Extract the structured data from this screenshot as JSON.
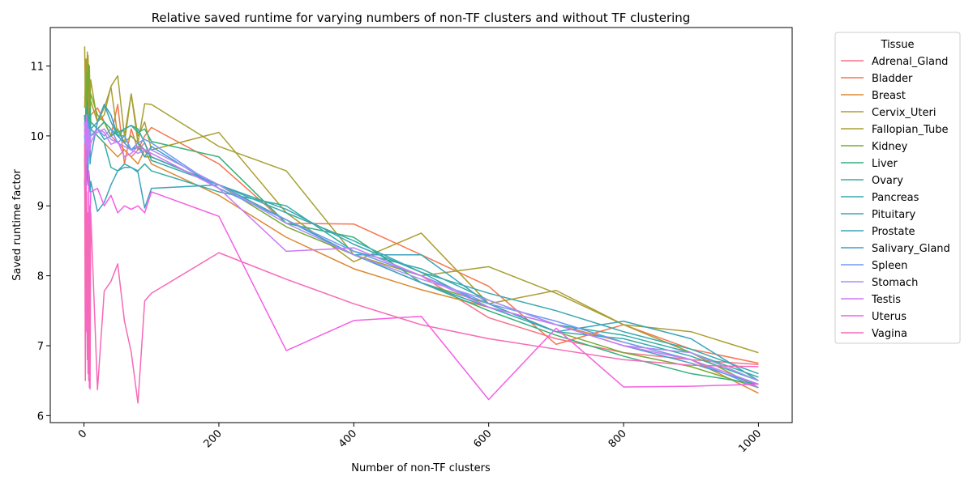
{
  "chart_data": {
    "type": "line",
    "title": "Relative saved runtime for varying numbers of non-TF clusters and without TF clustering",
    "xlabel": "Number of non-TF clusters",
    "ylabel": "Saved runtime factor",
    "xlim": [
      -50,
      1050
    ],
    "ylim": [
      5.9,
      11.55
    ],
    "x_ticks": [
      0,
      200,
      400,
      600,
      800,
      1000
    ],
    "y_ticks": [
      6,
      7,
      8,
      9,
      10,
      11
    ],
    "x_tick_rotation": 45,
    "grid": false,
    "legend": {
      "title": "Tissue",
      "placement": "outside-right-top"
    },
    "x": [
      1,
      2,
      3,
      4,
      5,
      6,
      7,
      8,
      9,
      10,
      20,
      30,
      40,
      50,
      60,
      70,
      80,
      90,
      100,
      200,
      300,
      400,
      500,
      600,
      700,
      800,
      900,
      1000
    ],
    "series": [
      {
        "name": "Adrenal_Gland",
        "color": "#f77189",
        "values": [
          10.2,
          9.9,
          10.3,
          10.0,
          9.8,
          10.1,
          9.9,
          10.0,
          9.7,
          10.2,
          10.1,
          10.2,
          10.0,
          9.9,
          9.8,
          9.7,
          9.8,
          9.9,
          9.7,
          9.3,
          8.8,
          8.3,
          8.0,
          7.4,
          7.1,
          6.9,
          6.8,
          6.73
        ]
      },
      {
        "name": "Bladder",
        "color": "#f7754f",
        "values": [
          10.3,
          10.0,
          10.4,
          10.1,
          9.9,
          10.5,
          10.2,
          10.4,
          10.1,
          10.3,
          10.4,
          10.2,
          10.0,
          10.45,
          9.6,
          10.1,
          9.8,
          10.0,
          10.12,
          9.6,
          8.75,
          8.74,
          8.3,
          7.85,
          7.02,
          7.3,
          6.95,
          6.75
        ]
      },
      {
        "name": "Breast",
        "color": "#dc8932",
        "values": [
          10.1,
          9.8,
          10.2,
          10.0,
          9.9,
          10.3,
          10.6,
          10.4,
          10.2,
          10.1,
          10.0,
          9.9,
          9.8,
          9.7,
          9.8,
          9.7,
          9.6,
          9.8,
          9.6,
          9.15,
          8.55,
          8.1,
          7.8,
          7.55,
          7.3,
          7.05,
          6.8,
          6.32
        ]
      },
      {
        "name": "Cervix_Uteri",
        "color": "#ae9d31",
        "values": [
          11.28,
          10.5,
          11.1,
          10.7,
          11.2,
          10.4,
          10.9,
          10.6,
          10.3,
          10.5,
          10.2,
          10.4,
          10.7,
          10.0,
          9.9,
          10.6,
          10.0,
          10.2,
          9.8,
          10.05,
          8.9,
          8.2,
          8.61,
          7.6,
          7.79,
          7.3,
          7.2,
          6.9
        ]
      },
      {
        "name": "Fallopian_Tube",
        "color": "#a6a032",
        "values": [
          10.4,
          10.8,
          11.0,
          10.6,
          10.9,
          11.15,
          10.7,
          11.0,
          10.5,
          10.8,
          10.2,
          10.3,
          10.71,
          10.86,
          10.0,
          10.6,
          9.9,
          10.46,
          10.45,
          9.85,
          9.5,
          8.3,
          8.0,
          8.13,
          7.75,
          7.3,
          6.9,
          6.4
        ]
      },
      {
        "name": "Kidney",
        "color": "#77ab31",
        "values": [
          10.3,
          10.1,
          10.5,
          10.9,
          10.2,
          10.8,
          11.02,
          10.7,
          10.4,
          10.6,
          10.3,
          10.2,
          10.0,
          10.1,
          9.9,
          10.0,
          9.9,
          9.7,
          9.7,
          9.3,
          8.7,
          8.3,
          7.9,
          7.6,
          7.2,
          6.9,
          6.7,
          6.4
        ]
      },
      {
        "name": "Liver",
        "color": "#33b07a",
        "values": [
          10.2,
          10.0,
          10.4,
          10.3,
          10.5,
          10.2,
          10.1,
          10.3,
          10.4,
          10.2,
          10.1,
          10.2,
          10.1,
          10.0,
          10.1,
          10.15,
          10.05,
          10.1,
          9.92,
          9.7,
          8.75,
          8.55,
          7.9,
          7.5,
          7.15,
          6.85,
          6.6,
          6.45
        ]
      },
      {
        "name": "Ovary",
        "color": "#36ada4",
        "values": [
          10.1,
          10.0,
          10.2,
          10.1,
          9.9,
          10.3,
          10.1,
          10.0,
          10.2,
          10.1,
          10.0,
          9.9,
          9.55,
          9.5,
          9.6,
          9.55,
          9.5,
          9.6,
          9.5,
          9.2,
          9.0,
          8.35,
          8.1,
          7.65,
          7.3,
          7.15,
          6.9,
          6.55
        ]
      },
      {
        "name": "Pancreas",
        "color": "#38aaac",
        "values": [
          10.0,
          9.9,
          10.1,
          10.2,
          10.0,
          10.1,
          9.9,
          10.2,
          10.1,
          10.0,
          10.1,
          9.95,
          10.0,
          10.05,
          10.1,
          10.15,
          10.1,
          9.9,
          9.65,
          9.3,
          8.9,
          8.5,
          8.05,
          7.55,
          7.2,
          7.1,
          6.85,
          6.5
        ]
      },
      {
        "name": "Pituitary",
        "color": "#39a7b1",
        "values": [
          10.3,
          10.1,
          10.25,
          10.0,
          9.8,
          10.2,
          10.1,
          10.15,
          10.0,
          10.1,
          10.2,
          10.45,
          10.2,
          10.0,
          10.0,
          9.8,
          9.9,
          9.8,
          9.7,
          9.3,
          8.95,
          8.45,
          8.05,
          7.75,
          7.5,
          7.2,
          6.95,
          6.6
        ]
      },
      {
        "name": "Prostate",
        "color": "#3ba3bc",
        "values": [
          9.3,
          9.5,
          9.2,
          9.4,
          9.6,
          9.3,
          9.5,
          9.4,
          9.2,
          9.35,
          8.92,
          9.05,
          9.3,
          9.5,
          9.55,
          9.55,
          9.48,
          8.97,
          9.25,
          9.3,
          8.8,
          8.3,
          8.3,
          7.6,
          7.2,
          7.35,
          7.1,
          6.5
        ]
      },
      {
        "name": "Salivary_Gland",
        "color": "#3e9fca",
        "values": [
          9.7,
          9.2,
          9.6,
          9.8,
          10.0,
          9.5,
          9.9,
          10.1,
          9.6,
          9.7,
          10.2,
          10.45,
          10.3,
          10.0,
          9.9,
          9.8,
          9.85,
          9.7,
          9.85,
          9.25,
          8.8,
          8.3,
          7.9,
          7.55,
          7.3,
          7.0,
          6.75,
          6.45
        ]
      },
      {
        "name": "Spleen",
        "color": "#6e9bf4",
        "values": [
          10.0,
          9.7,
          10.1,
          9.9,
          9.6,
          10.2,
          10.0,
          9.8,
          10.1,
          10.0,
          10.1,
          10.0,
          10.1,
          9.9,
          10.0,
          9.8,
          9.9,
          9.95,
          9.9,
          9.25,
          8.8,
          8.35,
          8.0,
          7.6,
          7.35,
          7.05,
          6.8,
          6.4
        ]
      },
      {
        "name": "Stomach",
        "color": "#ab8ff4",
        "values": [
          10.2,
          9.9,
          10.0,
          9.8,
          10.1,
          9.9,
          10.1,
          9.8,
          9.9,
          10.0,
          10.05,
          10.1,
          9.95,
          9.9,
          9.85,
          9.8,
          9.75,
          9.8,
          9.8,
          9.3,
          8.75,
          8.3,
          7.95,
          7.65,
          7.3,
          7.0,
          6.9,
          6.5
        ]
      },
      {
        "name": "Testis",
        "color": "#cc7af4",
        "values": [
          10.0,
          10.2,
          9.8,
          10.3,
          9.9,
          10.1,
          9.7,
          10.0,
          9.8,
          9.9,
          10.1,
          10.05,
          9.88,
          9.92,
          9.7,
          9.75,
          9.85,
          9.8,
          9.75,
          9.25,
          8.35,
          8.4,
          8.0,
          7.55,
          7.3,
          7.0,
          6.8,
          6.45
        ]
      },
      {
        "name": "Uterus",
        "color": "#f45fe4",
        "values": [
          9.4,
          8.5,
          9.8,
          7.2,
          8.9,
          6.6,
          9.5,
          6.4,
          8.8,
          9.2,
          9.25,
          9.0,
          9.15,
          8.9,
          9.0,
          8.95,
          9.0,
          8.9,
          9.2,
          8.85,
          6.93,
          7.36,
          7.42,
          6.23,
          7.25,
          6.41,
          6.42,
          6.45
        ]
      },
      {
        "name": "Vagina",
        "color": "#f669b7",
        "values": [
          9.9,
          6.5,
          8.4,
          9.2,
          6.8,
          8.7,
          6.5,
          9.0,
          6.38,
          8.9,
          6.37,
          7.78,
          7.92,
          8.17,
          7.35,
          6.91,
          6.18,
          7.64,
          7.75,
          8.33,
          7.95,
          7.6,
          7.3,
          7.1,
          6.95,
          6.8,
          6.72,
          6.7
        ]
      }
    ]
  }
}
